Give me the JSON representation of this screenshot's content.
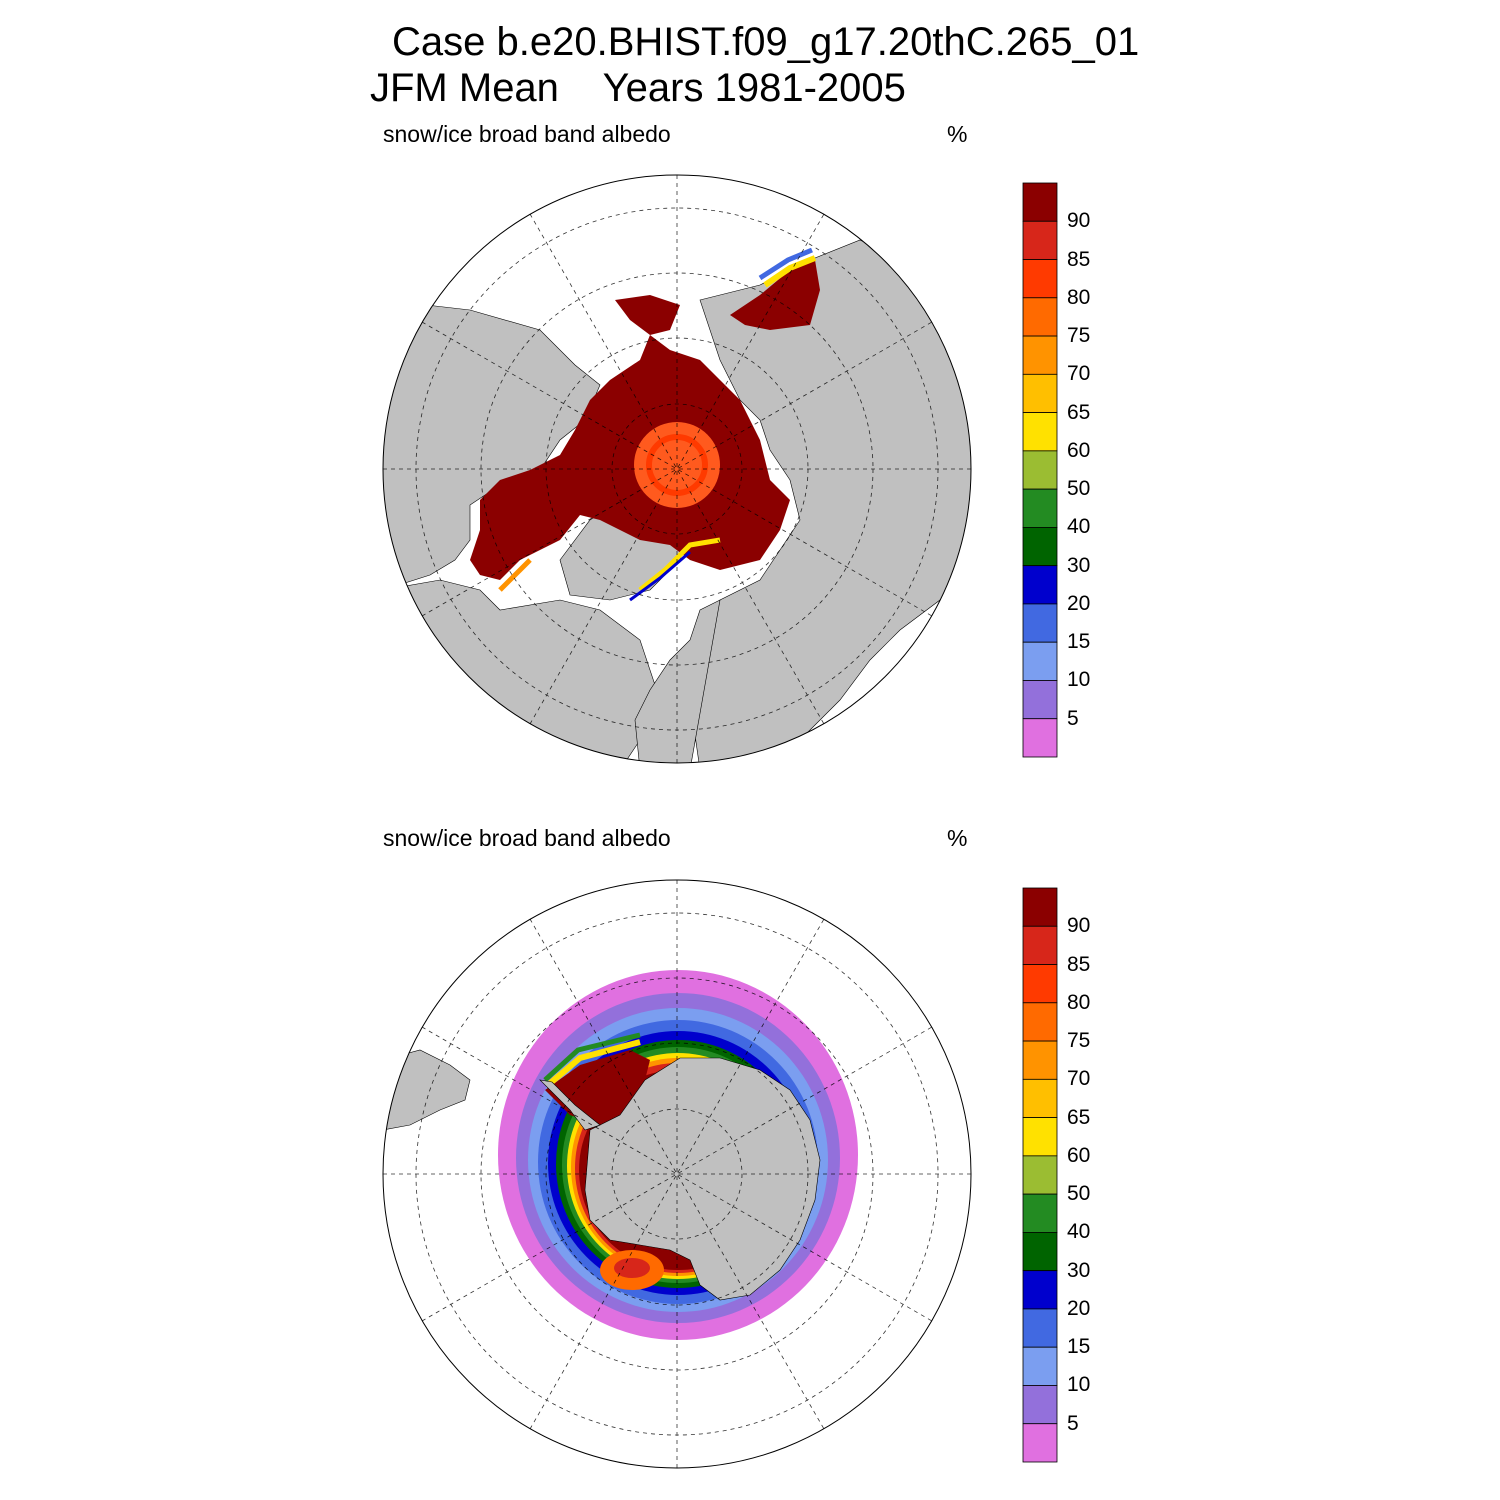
{
  "title": {
    "line1": "Case b.e20.BHIST.f09_g17.20thC.265_01",
    "line2": "JFM Mean    Years 1981-2005"
  },
  "panels": [
    {
      "id": "north",
      "label": "snow/ice broad band albedo",
      "unit": "%"
    },
    {
      "id": "south",
      "label": "snow/ice broad band albedo",
      "unit": "%"
    }
  ],
  "colorbar": {
    "labels": [
      "90",
      "85",
      "80",
      "75",
      "70",
      "65",
      "60",
      "50",
      "40",
      "30",
      "20",
      "15",
      "10",
      "5"
    ],
    "colors": [
      "#8b0000",
      "#d7261a",
      "#ff3a00",
      "#ff6a00",
      "#ff9300",
      "#ffbf00",
      "#ffe100",
      "#9bbd32",
      "#238b22",
      "#006400",
      "#0000cd",
      "#4169e1",
      "#7b9ef0",
      "#9370db",
      "#e070e0"
    ]
  },
  "colors": {
    "land": "#c0c0c0",
    "ocean": "#ffffff",
    "ice_max": "#8b0000",
    "pole_center": "#ff5a1e"
  }
}
